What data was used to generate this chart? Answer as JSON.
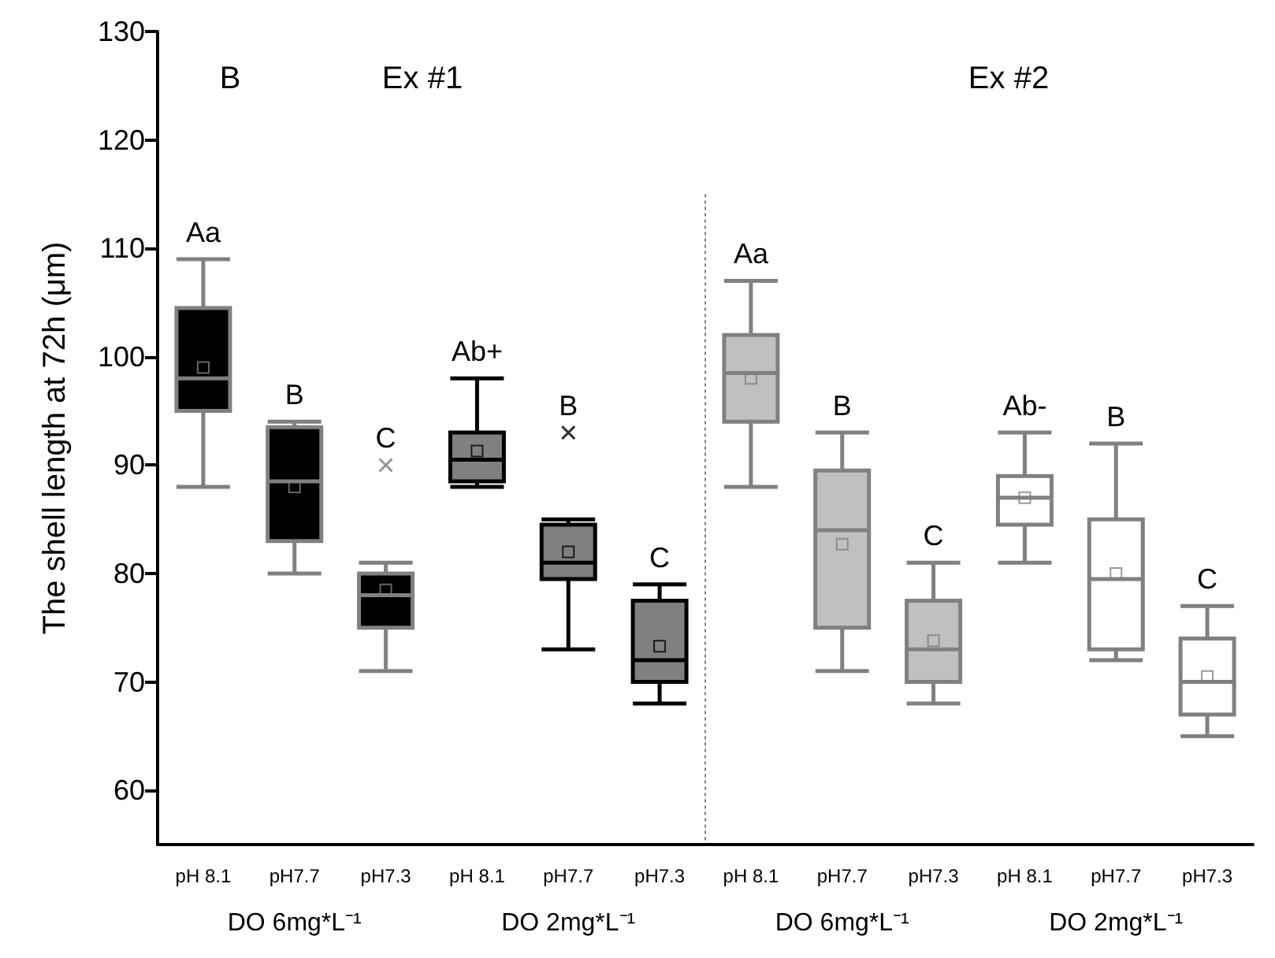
{
  "chart_data": {
    "type": "box",
    "ylabel": "The shell length at 72h (μm)",
    "categories": [
      "pH 8.1",
      "pH7.7",
      "pH7.3",
      "pH 8.1",
      "pH7.7",
      "pH7.3",
      "pH 8.1",
      "pH7.7",
      "pH7.3",
      "pH 8.1",
      "pH7.7",
      "pH7.3"
    ],
    "ylim": [
      55,
      130
    ],
    "yticks": [
      60,
      70,
      80,
      90,
      100,
      110,
      120,
      130
    ],
    "grid": false,
    "series": [
      {
        "color": "#000000",
        "boxes": [
          {
            "low": 88,
            "q1": 95,
            "median": 98,
            "q3": 104.5,
            "high": 109,
            "mean": 99
          },
          {
            "low": 80,
            "q1": 83,
            "median": 88.5,
            "q3": 93.5,
            "high": 94,
            "mean": 88
          },
          {
            "low": 71,
            "q1": 75,
            "median": 78,
            "q3": 80,
            "high": 81,
            "mean": 78.5,
            "outliers": [
              90
            ]
          },
          null,
          null,
          null,
          null,
          null,
          null,
          null,
          null,
          null
        ]
      },
      {
        "color": "#808080",
        "boxes": [
          null,
          null,
          null,
          {
            "low": 88,
            "q1": 88.5,
            "median": 90.5,
            "q3": 93,
            "high": 98,
            "mean": 91.3
          },
          {
            "low": 73,
            "q1": 79.5,
            "median": 81,
            "q3": 84.5,
            "high": 85,
            "mean": 82,
            "outliers": [
              93
            ]
          },
          {
            "low": 68,
            "q1": 70,
            "median": 72,
            "q3": 77.5,
            "high": 79,
            "mean": 73.3
          },
          null,
          null,
          null,
          null,
          null,
          null
        ]
      },
      {
        "color": "#c0c0c0",
        "boxes": [
          null,
          null,
          null,
          null,
          null,
          null,
          {
            "low": 88,
            "q1": 94,
            "median": 98.5,
            "q3": 102,
            "high": 107,
            "mean": 98
          },
          {
            "low": 71,
            "q1": 75,
            "median": 84,
            "q3": 89.5,
            "high": 93,
            "mean": 82.7
          },
          {
            "low": 68,
            "q1": 70,
            "median": 73,
            "q3": 77.5,
            "high": 81,
            "mean": 73.8
          },
          null,
          null,
          null
        ]
      },
      {
        "color": "#ffffff",
        "boxes": [
          null,
          null,
          null,
          null,
          null,
          null,
          null,
          null,
          null,
          {
            "low": 81,
            "q1": 84.5,
            "median": 87,
            "q3": 89,
            "high": 93,
            "mean": 87
          },
          {
            "low": 72,
            "q1": 73,
            "median": 79.5,
            "q3": 85,
            "high": 92,
            "mean": 80
          },
          {
            "low": 65,
            "q1": 67,
            "median": 70,
            "q3": 74,
            "high": 77,
            "mean": 70.5
          }
        ]
      }
    ],
    "annotations": [
      "B",
      "Ex #1",
      "Ex #2",
      "DO 6mg*L⁻¹",
      "DO 2mg*L⁻¹",
      "DO 6mg*L⁻¹",
      "DO 2mg*L⁻¹",
      "Aa",
      "B",
      "C",
      "Ab+",
      "B",
      "C",
      "Aa",
      "B",
      "C",
      "Ab-",
      "B",
      "C"
    ]
  }
}
